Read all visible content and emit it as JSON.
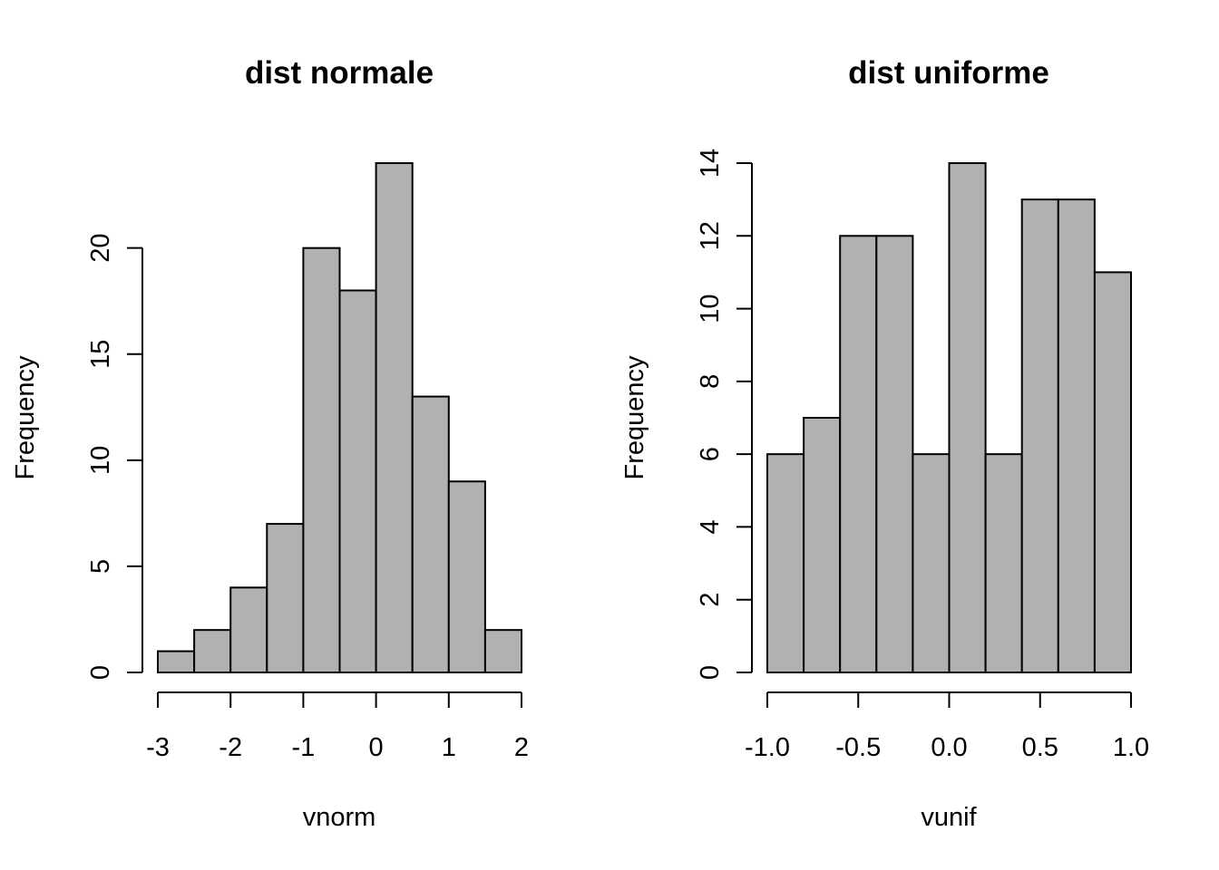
{
  "chart_data": [
    {
      "type": "bar",
      "title": "dist normale",
      "xlabel": "vnorm",
      "ylabel": "Frequency",
      "bin_edges": [
        -3,
        -2.5,
        -2,
        -1.5,
        -1,
        -0.5,
        0,
        0.5,
        1,
        1.5,
        2
      ],
      "values": [
        1,
        2,
        4,
        7,
        20,
        18,
        24,
        13,
        9,
        2
      ],
      "xlim": [
        -3,
        2
      ],
      "ylim": [
        0,
        24
      ],
      "x_ticks": [
        -3,
        -2,
        -1,
        0,
        1,
        2
      ],
      "x_tick_labels": [
        "-3",
        "-2",
        "-1",
        "0",
        "1",
        "2"
      ],
      "y_ticks": [
        0,
        5,
        10,
        15,
        20
      ],
      "y_tick_labels": [
        "0",
        "5",
        "10",
        "15",
        "20"
      ],
      "grid": false,
      "bar_color": "#b1b1b1"
    },
    {
      "type": "bar",
      "title": "dist uniforme",
      "xlabel": "vunif",
      "ylabel": "Frequency",
      "bin_edges": [
        -1.0,
        -0.8,
        -0.6,
        -0.4,
        -0.2,
        0.0,
        0.2,
        0.4,
        0.6,
        0.8,
        1.0
      ],
      "values": [
        6,
        7,
        12,
        12,
        6,
        14,
        6,
        13,
        13,
        11
      ],
      "xlim": [
        -1.0,
        1.0
      ],
      "ylim": [
        0,
        14
      ],
      "x_ticks": [
        -1.0,
        -0.5,
        0.0,
        0.5,
        1.0
      ],
      "x_tick_labels": [
        "-1.0",
        "-0.5",
        "0.0",
        "0.5",
        "1.0"
      ],
      "y_ticks": [
        0,
        2,
        4,
        6,
        8,
        10,
        12,
        14
      ],
      "y_tick_labels": [
        "0",
        "2",
        "4",
        "6",
        "8",
        "10",
        "12",
        "14"
      ],
      "grid": false,
      "bar_color": "#b1b1b1"
    }
  ]
}
